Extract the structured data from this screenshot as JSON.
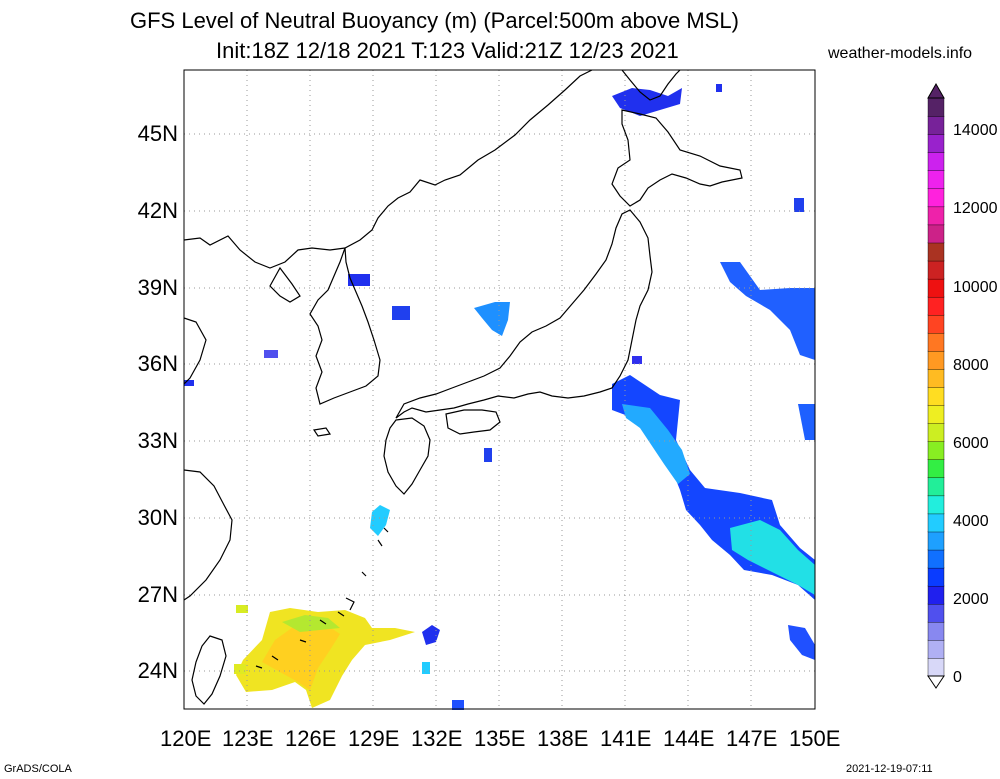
{
  "header": {
    "title_line1": "GFS Level of Neutral Buoyancy (m) (Parcel:500m above MSL)",
    "title_line2": "Init:18Z 12/18 2021 T:123 Valid:21Z 12/23 2021",
    "site": "weather-models.info"
  },
  "map": {
    "lat_labels": [
      "45N",
      "42N",
      "39N",
      "36N",
      "33N",
      "30N",
      "27N",
      "24N"
    ],
    "lon_labels": [
      "120E",
      "123E",
      "126E",
      "129E",
      "132E",
      "135E",
      "138E",
      "141E",
      "144E",
      "147E",
      "150E"
    ]
  },
  "colorbar": {
    "labels": [
      "14000",
      "12000",
      "10000",
      "8000",
      "6000",
      "4000",
      "2000",
      "0"
    ],
    "colors": [
      "#d8d8f8",
      "#b0b0f4",
      "#8888f0",
      "#5050ee",
      "#2020ee",
      "#0a3cff",
      "#1070ff",
      "#1ea0ff",
      "#22ccff",
      "#22eedd",
      "#22ee99",
      "#33ee44",
      "#88ee22",
      "#ccee22",
      "#eeee22",
      "#ffdd22",
      "#ffbb22",
      "#ff9922",
      "#ff7722",
      "#ff4422",
      "#ff2222",
      "#ee1111",
      "#cc2222",
      "#aa3322",
      "#cc2288",
      "#ee22aa",
      "#ff22dd",
      "#ee22ee",
      "#cc22ee",
      "#9922cc",
      "#772299",
      "#552266"
    ]
  },
  "footer": {
    "left": "GrADS/COLA",
    "right": "2021-12-19-07:11"
  }
}
